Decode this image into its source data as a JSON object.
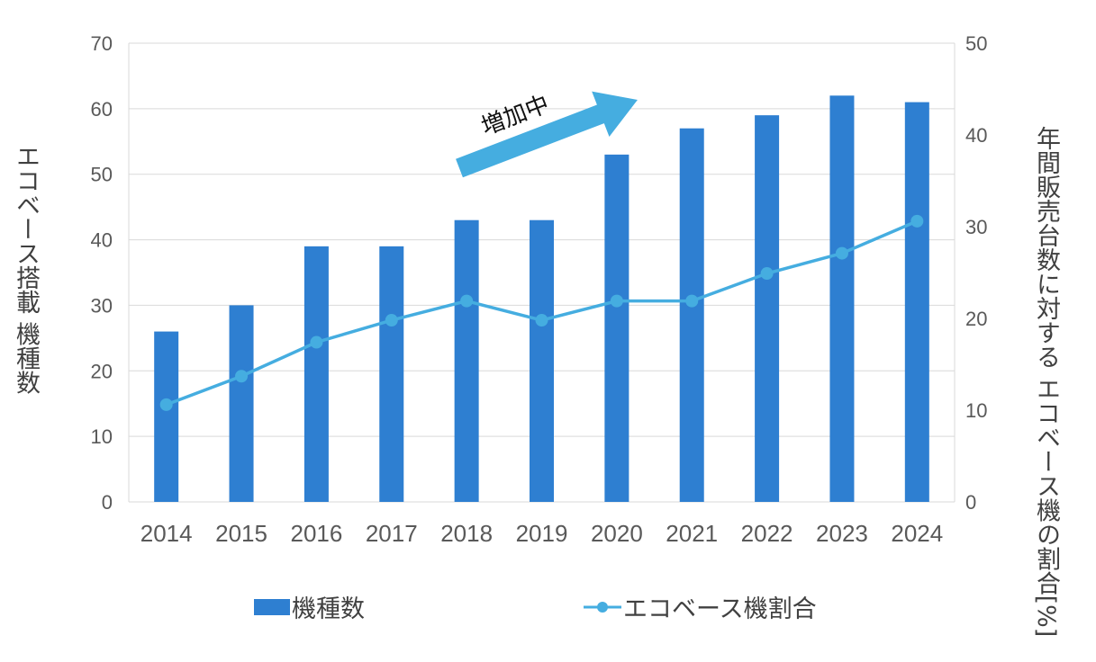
{
  "chart_data": {
    "type": "bar+line",
    "categories": [
      "2014",
      "2015",
      "2016",
      "2017",
      "2018",
      "2019",
      "2020",
      "2021",
      "2022",
      "2023",
      "2024"
    ],
    "series": [
      {
        "name": "機種数",
        "type": "bar",
        "axis": "left",
        "color": "#2E7FD1",
        "values": [
          26,
          30,
          39,
          39,
          43,
          43,
          53,
          57,
          59,
          62,
          61
        ]
      },
      {
        "name": "エコベース機割合",
        "type": "line",
        "axis": "right",
        "color": "#45ADE0",
        "values": [
          10.6,
          13.7,
          17.4,
          19.8,
          21.9,
          19.8,
          21.9,
          21.9,
          24.9,
          27.1,
          30.6
        ]
      }
    ],
    "ylabel_left": "エコベース搭載 機種数",
    "ylabel_right_lines": [
      "年間販売台数に対する",
      "エコベース機の割合[%]"
    ],
    "ylim_left": [
      0,
      70
    ],
    "yticks_left": [
      "0",
      "10",
      "20",
      "30",
      "40",
      "50",
      "60",
      "70"
    ],
    "ylim_right": [
      0,
      50
    ],
    "yticks_right": [
      "0",
      "10",
      "20",
      "30",
      "40",
      "50"
    ],
    "annotation": "増加中",
    "grid": true,
    "legend_placement": "bottom"
  }
}
